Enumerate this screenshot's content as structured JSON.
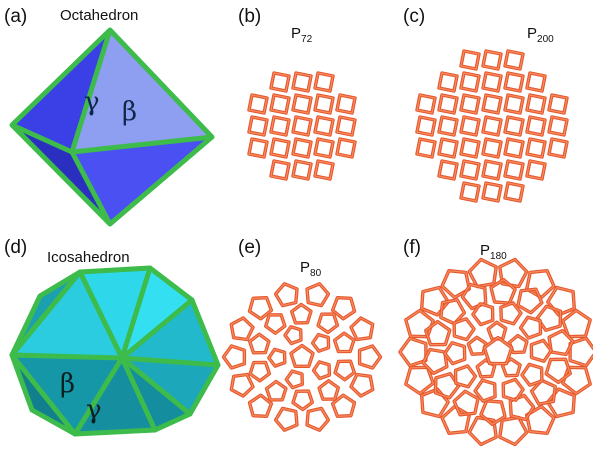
{
  "panels": {
    "a": {
      "label": "(a)",
      "title": "Octahedron",
      "greek_1": "γ",
      "greek_2": "β"
    },
    "b": {
      "label": "(b)",
      "title_main": "P",
      "title_sub": "72"
    },
    "c": {
      "label": "(c)",
      "title_main": "P",
      "title_sub": "200"
    },
    "d": {
      "label": "(d)",
      "title": "Icosahedron",
      "greek_1": "β",
      "greek_2": "γ"
    },
    "e": {
      "label": "(e)",
      "title_main": "P",
      "title_sub": "80"
    },
    "f": {
      "label": "(f)",
      "title_main": "P",
      "title_sub": "180"
    }
  },
  "colors": {
    "edge": "#3dbb4b",
    "octa_face_light": "#8fa0f0",
    "octa_face_mid": "#4a4ef0",
    "octa_face_dark": "#2f36d8",
    "icosa_face_light": "#39e2f2",
    "icosa_face_mid": "#1fb6c8",
    "icosa_face_dark": "#148d9e",
    "cage": "#e4572e"
  }
}
